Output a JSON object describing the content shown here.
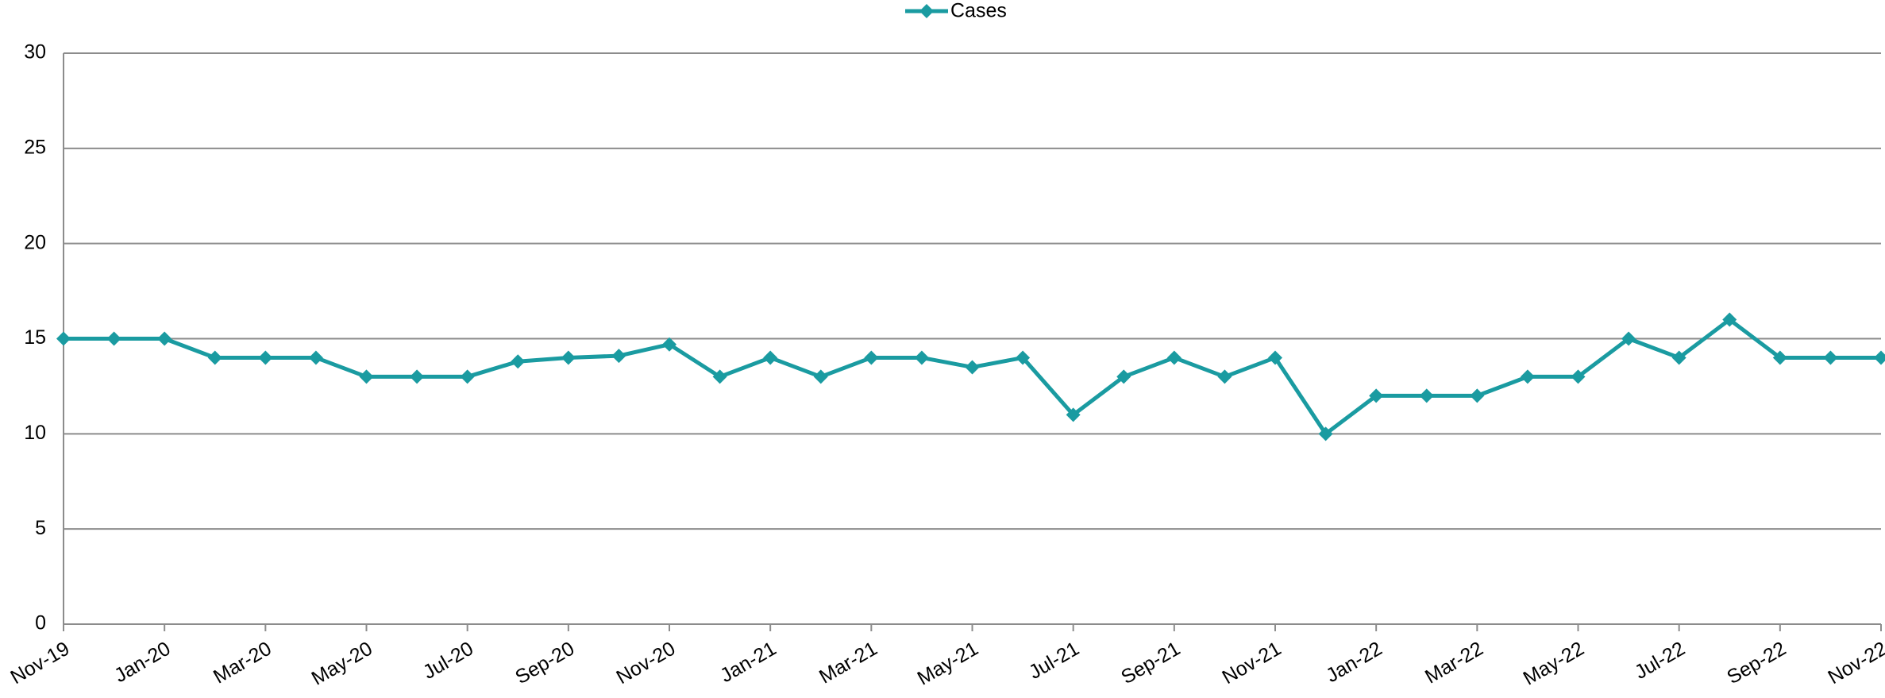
{
  "chart_data": {
    "type": "line",
    "categories": [
      "Nov-19",
      null,
      "Jan-20",
      null,
      "Mar-20",
      null,
      "May-20",
      null,
      "Jul-20",
      null,
      "Sep-20",
      null,
      "Nov-20",
      null,
      "Jan-21",
      null,
      "Mar-21",
      null,
      "May-21",
      null,
      "Jul-21",
      null,
      "Sep-21",
      null,
      "Nov-21",
      null,
      "Jan-22",
      null,
      "Mar-22",
      null,
      "May-22",
      null,
      "Jul-22",
      null,
      "Sep-22",
      null,
      "Nov-22"
    ],
    "series": [
      {
        "name": "Cases",
        "color": "#1a9ba1",
        "values": [
          15,
          15,
          15,
          14,
          14,
          14,
          13,
          13,
          13,
          13.8,
          14,
          14.1,
          14.7,
          13,
          14,
          13,
          14,
          14,
          13.5,
          14,
          11,
          13,
          14,
          13,
          14,
          10,
          12,
          12,
          12,
          13,
          13,
          15,
          14,
          16,
          14,
          14,
          14
        ]
      }
    ],
    "ylim": [
      0,
      30
    ],
    "yticks": [
      0,
      5,
      10,
      15,
      20,
      25,
      30
    ],
    "grid": true,
    "legend": "top"
  }
}
